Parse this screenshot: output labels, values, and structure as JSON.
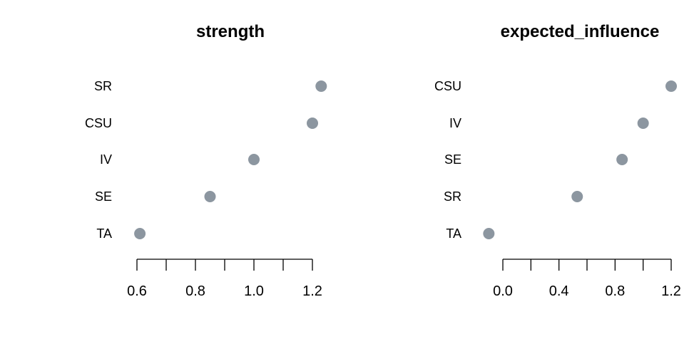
{
  "chart_data": [
    {
      "type": "scatter",
      "title": "strength",
      "categories": [
        "SR",
        "CSU",
        "IV",
        "SE",
        "TA"
      ],
      "values": [
        1.23,
        1.2,
        1.0,
        0.85,
        0.61
      ],
      "xticks": [
        "0.6",
        "0.8",
        "1.0",
        "1.2"
      ],
      "xlim": [
        0.6,
        1.2
      ],
      "minor_ticks": [
        0.6,
        0.7,
        0.8,
        0.9,
        1.0,
        1.1,
        1.2
      ],
      "point_color": "#8c96a0",
      "xlabel": "",
      "ylabel": "",
      "grid": false
    },
    {
      "type": "scatter",
      "title": "expected_influence",
      "categories": [
        "CSU",
        "IV",
        "SE",
        "SR",
        "TA"
      ],
      "values": [
        1.2,
        1.0,
        0.85,
        0.53,
        -0.1
      ],
      "xticks": [
        "0.0",
        "0.4",
        "0.8",
        "1.2"
      ],
      "xlim": [
        0.0,
        1.2
      ],
      "minor_ticks": [
        0.0,
        0.2,
        0.4,
        0.6,
        0.8,
        1.0,
        1.2
      ],
      "point_color": "#8c96a0",
      "xlabel": "",
      "ylabel": "",
      "grid": false
    }
  ]
}
